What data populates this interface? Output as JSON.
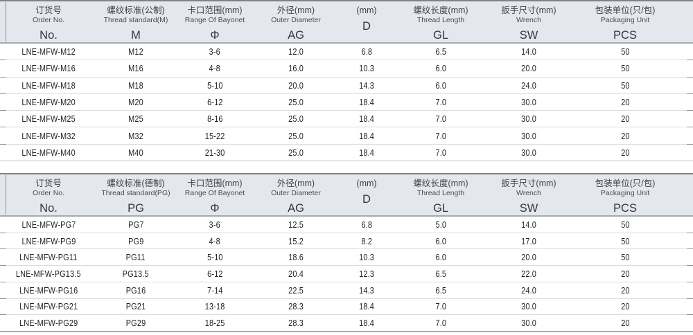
{
  "colors": {
    "header_bg": "#e4e7ee",
    "header_top_rule": "#7f8287",
    "header_bottom_rule": "#a6a9ad",
    "row_separator": "#d9dbde",
    "separator_tick": "#8f9297",
    "body_text": "#222326",
    "header_text": "#3f4247"
  },
  "tables": [
    {
      "id": "metric",
      "columns": [
        {
          "key": "order-no",
          "cn": "订货号",
          "en": "Order No.",
          "symbol": "No."
        },
        {
          "key": "thread-standard",
          "cn": "螺纹标准(公制)",
          "en": "Thread standard(M)",
          "symbol": "M"
        },
        {
          "key": "bayonet-range",
          "cn": "卡口范围(mm)",
          "en": "Range Of Bayonet",
          "symbol": "Φ"
        },
        {
          "key": "outer-diameter",
          "cn": "外径(mm)",
          "en": "Outer Diameter",
          "symbol": "AG"
        },
        {
          "key": "inner-diameter",
          "cn": "(mm)",
          "en": "",
          "symbol": "D"
        },
        {
          "key": "thread-length",
          "cn": "螺纹长度(mm)",
          "en": "Thread Length",
          "symbol": "GL"
        },
        {
          "key": "wrench",
          "cn": "扳手尺寸(mm)",
          "en": "Wrench",
          "symbol": "SW"
        },
        {
          "key": "packaging",
          "cn": "包装单位(只/包)",
          "en": "Packaging Unit",
          "symbol": "PCS"
        }
      ],
      "rows": [
        [
          "LNE-MFW-M12",
          "M12",
          "3-6",
          "12.0",
          "6.8",
          "6.5",
          "14.0",
          "50"
        ],
        [
          "LNE-MFW-M16",
          "M16",
          "4-8",
          "16.0",
          "10.3",
          "6.0",
          "20.0",
          "50"
        ],
        [
          "LNE-MFW-M18",
          "M18",
          "5-10",
          "20.0",
          "14.3",
          "6.0",
          "24.0",
          "50"
        ],
        [
          "LNE-MFW-M20",
          "M20",
          "6-12",
          "25.0",
          "18.4",
          "7.0",
          "30.0",
          "20"
        ],
        [
          "LNE-MFW-M25",
          "M25",
          "8-16",
          "25.0",
          "18.4",
          "7.0",
          "30.0",
          "20"
        ],
        [
          "LNE-MFW-M32",
          "M32",
          "15-22",
          "25.0",
          "18.4",
          "7.0",
          "30.0",
          "20"
        ],
        [
          "LNE-MFW-M40",
          "M40",
          "21-30",
          "25.0",
          "18.4",
          "7.0",
          "30.0",
          "20"
        ]
      ]
    },
    {
      "id": "pg",
      "columns": [
        {
          "key": "order-no",
          "cn": "订货号",
          "en": "Order No.",
          "symbol": "No."
        },
        {
          "key": "thread-standard",
          "cn": "螺纹标准(德制)",
          "en": "Thread standard(PG)",
          "symbol": "PG"
        },
        {
          "key": "bayonet-range",
          "cn": "卡口范围(mm)",
          "en": "Range Of Bayonet",
          "symbol": "Φ"
        },
        {
          "key": "outer-diameter",
          "cn": "外径(mm)",
          "en": "Outer Diameter",
          "symbol": "AG"
        },
        {
          "key": "inner-diameter",
          "cn": "(mm)",
          "en": "",
          "symbol": "D"
        },
        {
          "key": "thread-length",
          "cn": "螺纹长度(mm)",
          "en": "Thread Length",
          "symbol": "GL"
        },
        {
          "key": "wrench",
          "cn": "扳手尺寸(mm)",
          "en": "Wrench",
          "symbol": "SW"
        },
        {
          "key": "packaging",
          "cn": "包装单位(只/包)",
          "en": "Packaging Unit",
          "symbol": "PCS"
        }
      ],
      "rows": [
        [
          "LNE-MFW-PG7",
          "PG7",
          "3-6",
          "12.5",
          "6.8",
          "5.0",
          "14.0",
          "50"
        ],
        [
          "LNE-MFW-PG9",
          "PG9",
          "4-8",
          "15.2",
          "8.2",
          "6.0",
          "17.0",
          "50"
        ],
        [
          "LNE-MFW-PG11",
          "PG11",
          "5-10",
          "18.6",
          "10.3",
          "6.0",
          "20.0",
          "50"
        ],
        [
          "LNE-MFW-PG13.5",
          "PG13.5",
          "6-12",
          "20.4",
          "12.3",
          "6.5",
          "22.0",
          "20"
        ],
        [
          "LNE-MFW-PG16",
          "PG16",
          "7-14",
          "22.5",
          "14.3",
          "6.5",
          "24.0",
          "20"
        ],
        [
          "LNE-MFW-PG21",
          "PG21",
          "13-18",
          "28.3",
          "18.4",
          "7.0",
          "30.0",
          "20"
        ],
        [
          "LNE-MFW-PG29",
          "PG29",
          "18-25",
          "28.3",
          "18.4",
          "7.0",
          "30.0",
          "20"
        ]
      ]
    }
  ]
}
